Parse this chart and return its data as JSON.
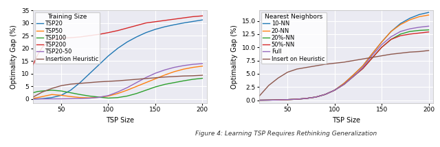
{
  "left": {
    "title": "Training Size",
    "xlabel": "TSP Size",
    "ylabel": "Optimality Gap (%)",
    "ylim": [
      -1.5,
      35
    ],
    "xlim": [
      20,
      205
    ],
    "yticks": [
      0,
      5,
      10,
      15,
      20,
      25,
      30,
      35
    ],
    "xticks": [
      50,
      100,
      150,
      200
    ],
    "series": [
      {
        "label": "TSP20",
        "color": "#1f77b4",
        "x": [
          20,
          25,
          30,
          40,
          50,
          60,
          70,
          80,
          90,
          100,
          110,
          120,
          130,
          140,
          150,
          160,
          170,
          180,
          190,
          200
        ],
        "y": [
          0.05,
          0.1,
          0.2,
          0.6,
          1.5,
          3.5,
          6.5,
          10.0,
          13.5,
          17.0,
          20.0,
          22.5,
          24.5,
          26.2,
          27.5,
          28.5,
          29.3,
          30.0,
          30.6,
          31.2
        ]
      },
      {
        "label": "TSP50",
        "color": "#ff7f0e",
        "x": [
          20,
          25,
          30,
          40,
          50,
          60,
          70,
          80,
          90,
          100,
          110,
          120,
          130,
          140,
          150,
          160,
          170,
          180,
          190,
          200
        ],
        "y": [
          0.3,
          0.6,
          1.0,
          1.8,
          1.5,
          1.0,
          0.6,
          0.5,
          0.7,
          1.2,
          2.2,
          3.5,
          5.0,
          6.5,
          8.0,
          9.5,
          10.8,
          11.8,
          12.5,
          13.0
        ]
      },
      {
        "label": "TSP100",
        "color": "#2ca02c",
        "x": [
          20,
          25,
          30,
          40,
          50,
          60,
          70,
          80,
          90,
          100,
          110,
          120,
          130,
          140,
          150,
          160,
          170,
          180,
          190,
          200
        ],
        "y": [
          2.5,
          3.0,
          3.2,
          3.5,
          3.2,
          2.5,
          1.8,
          1.2,
          0.8,
          0.4,
          0.6,
          1.2,
          2.2,
          3.5,
          4.8,
          5.8,
          6.5,
          7.2,
          7.8,
          8.2
        ]
      },
      {
        "label": "TSP200",
        "color": "#d62728",
        "x": [
          20,
          25,
          30,
          40,
          50,
          60,
          70,
          80,
          90,
          100,
          110,
          120,
          130,
          140,
          150,
          160,
          170,
          180,
          190,
          200
        ],
        "y": [
          13.5,
          17.5,
          20.5,
          23.5,
          24.0,
          24.2,
          24.5,
          25.0,
          25.5,
          26.2,
          27.0,
          28.0,
          29.0,
          30.0,
          30.5,
          31.0,
          31.5,
          32.0,
          32.5,
          32.8
        ]
      },
      {
        "label": "TSP20-50",
        "color": "#9467bd",
        "x": [
          20,
          25,
          30,
          40,
          50,
          60,
          70,
          80,
          90,
          100,
          110,
          120,
          130,
          140,
          150,
          160,
          170,
          180,
          190,
          200
        ],
        "y": [
          0.02,
          0.03,
          0.05,
          0.08,
          0.1,
          0.15,
          0.2,
          0.35,
          0.7,
          1.4,
          2.8,
          4.5,
          6.5,
          8.5,
          10.2,
          11.5,
          12.5,
          13.2,
          13.7,
          14.0
        ]
      },
      {
        "label": "Insertion Heuristic",
        "color": "#8c564b",
        "x": [
          20,
          25,
          30,
          40,
          50,
          60,
          70,
          80,
          90,
          100,
          110,
          120,
          130,
          140,
          150,
          160,
          170,
          180,
          190,
          200
        ],
        "y": [
          0.8,
          1.8,
          2.8,
          4.2,
          5.3,
          5.9,
          6.2,
          6.5,
          6.8,
          7.0,
          7.2,
          7.5,
          7.8,
          8.1,
          8.4,
          8.7,
          8.9,
          9.1,
          9.2,
          9.4
        ]
      }
    ]
  },
  "right": {
    "title": "Nearest Neighbors",
    "xlabel": "TSP Size",
    "ylabel": "Optimality Gap (%)",
    "ylim": [
      -0.5,
      17
    ],
    "xlim": [
      20,
      205
    ],
    "yticks": [
      0.0,
      2.5,
      5.0,
      7.5,
      10.0,
      12.5,
      15.0
    ],
    "xticks": [
      50,
      100,
      150,
      200
    ],
    "series": [
      {
        "label": "10-NN",
        "color": "#1f77b4",
        "x": [
          20,
          25,
          30,
          40,
          50,
          60,
          70,
          80,
          90,
          100,
          110,
          120,
          130,
          140,
          150,
          160,
          170,
          180,
          190,
          200
        ],
        "y": [
          0.01,
          0.02,
          0.03,
          0.06,
          0.12,
          0.2,
          0.35,
          0.6,
          1.1,
          1.9,
          3.2,
          4.8,
          6.5,
          8.8,
          11.0,
          13.0,
          14.5,
          15.5,
          16.2,
          16.6
        ]
      },
      {
        "label": "20-NN",
        "color": "#ff7f0e",
        "x": [
          20,
          25,
          30,
          40,
          50,
          60,
          70,
          80,
          90,
          100,
          110,
          120,
          130,
          140,
          150,
          160,
          170,
          180,
          190,
          200
        ],
        "y": [
          0.01,
          0.02,
          0.03,
          0.06,
          0.12,
          0.2,
          0.35,
          0.6,
          1.1,
          1.9,
          3.2,
          4.8,
          6.5,
          8.8,
          11.0,
          13.0,
          14.3,
          15.2,
          15.8,
          16.1
        ]
      },
      {
        "label": "20%-NN",
        "color": "#2ca02c",
        "x": [
          20,
          25,
          30,
          40,
          50,
          60,
          70,
          80,
          90,
          100,
          110,
          120,
          130,
          140,
          150,
          160,
          170,
          180,
          190,
          200
        ],
        "y": [
          0.01,
          0.02,
          0.03,
          0.06,
          0.12,
          0.2,
          0.35,
          0.6,
          1.1,
          1.9,
          3.0,
          4.5,
          6.0,
          8.0,
          10.0,
          11.5,
          12.5,
          13.0,
          13.2,
          13.3
        ]
      },
      {
        "label": "50%-NN",
        "color": "#d62728",
        "x": [
          20,
          25,
          30,
          40,
          50,
          60,
          70,
          80,
          90,
          100,
          110,
          120,
          130,
          140,
          150,
          160,
          170,
          180,
          190,
          200
        ],
        "y": [
          0.01,
          0.02,
          0.03,
          0.06,
          0.12,
          0.2,
          0.35,
          0.6,
          1.1,
          1.9,
          3.0,
          4.5,
          6.0,
          8.0,
          10.0,
          11.5,
          12.2,
          12.5,
          12.7,
          12.9
        ]
      },
      {
        "label": "Full",
        "color": "#9467bd",
        "x": [
          20,
          25,
          30,
          40,
          50,
          60,
          70,
          80,
          90,
          100,
          110,
          120,
          130,
          140,
          150,
          160,
          170,
          180,
          190,
          200
        ],
        "y": [
          0.01,
          0.02,
          0.03,
          0.06,
          0.12,
          0.2,
          0.35,
          0.6,
          1.1,
          1.9,
          3.0,
          4.5,
          6.2,
          8.5,
          10.5,
          12.0,
          13.0,
          13.5,
          13.8,
          14.0
        ]
      },
      {
        "label": "Insert on Heuristic",
        "color": "#8c564b",
        "x": [
          20,
          25,
          30,
          40,
          50,
          60,
          70,
          80,
          90,
          100,
          110,
          120,
          130,
          140,
          150,
          160,
          170,
          180,
          190,
          200
        ],
        "y": [
          0.8,
          1.8,
          2.8,
          4.2,
          5.3,
          5.9,
          6.2,
          6.5,
          6.8,
          7.0,
          7.2,
          7.5,
          7.8,
          8.1,
          8.4,
          8.7,
          8.9,
          9.1,
          9.2,
          9.4
        ]
      }
    ]
  },
  "caption": "Figure 4: Learning TSP Requires Rethinking Generalization",
  "fig_bg": "#ffffff",
  "plot_bg": "#eaeaf2",
  "grid_color": "#ffffff",
  "font_size": 6.5,
  "linewidth": 1.0
}
